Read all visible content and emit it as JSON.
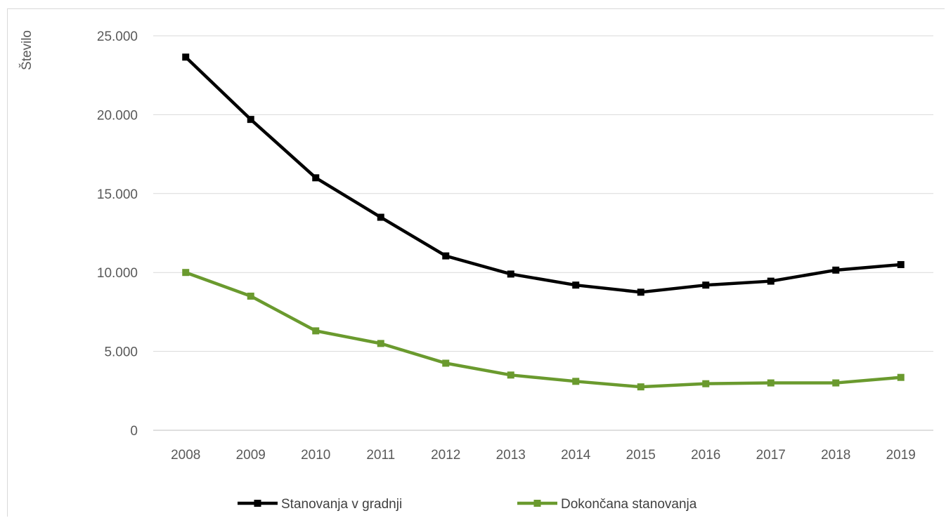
{
  "chart_data": {
    "type": "line",
    "title": "",
    "xlabel": "",
    "ylabel": "Število",
    "ylim": [
      0,
      25000
    ],
    "y_ticks": [
      0,
      5000,
      10000,
      15000,
      20000,
      25000
    ],
    "y_tick_labels": [
      "0",
      "5.000",
      "10.000",
      "15.000",
      "20.000",
      "25.000"
    ],
    "categories": [
      "2008",
      "2009",
      "2010",
      "2011",
      "2012",
      "2013",
      "2014",
      "2015",
      "2016",
      "2017",
      "2018",
      "2019"
    ],
    "grid": true,
    "legend_position": "bottom",
    "series": [
      {
        "name": "Stanovanja v gradnji",
        "color": "#000000",
        "marker": "square",
        "values": [
          23650,
          19700,
          16000,
          13500,
          11050,
          9900,
          9200,
          8750,
          9200,
          9450,
          10150,
          10500
        ]
      },
      {
        "name": "Dokončana stanovanja",
        "color": "#6a9a2e",
        "marker": "square",
        "values": [
          10000,
          8500,
          6300,
          5500,
          4250,
          3500,
          3100,
          2750,
          2950,
          3000,
          3000,
          3350
        ]
      }
    ]
  }
}
